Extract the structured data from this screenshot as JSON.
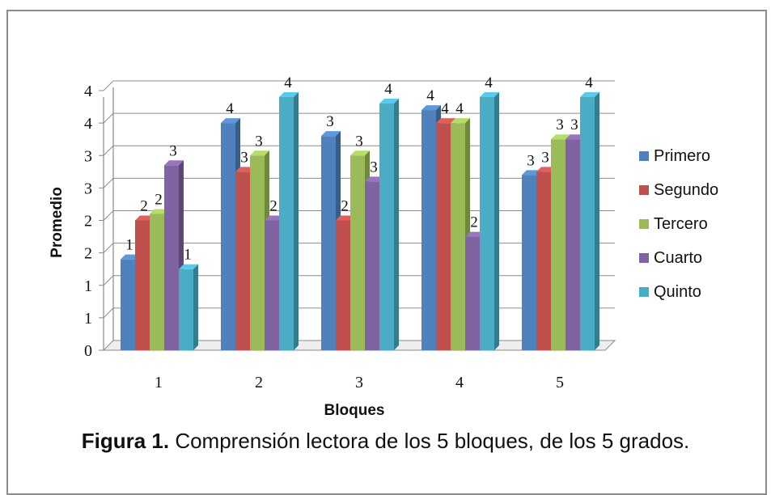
{
  "chart_data": {
    "type": "bar",
    "categories": [
      "1",
      "2",
      "3",
      "4",
      "5"
    ],
    "series": [
      {
        "name": "Primero",
        "color": "#4F81BD",
        "values": [
          1.4,
          3.5,
          3.3,
          3.7,
          2.7
        ],
        "labels": [
          "1",
          "4",
          "3",
          "4",
          "3"
        ]
      },
      {
        "name": "Segundo",
        "color": "#C0504D",
        "values": [
          2.0,
          2.75,
          2.0,
          3.5,
          2.75
        ],
        "labels": [
          "2",
          "3",
          "2",
          "4",
          "3"
        ]
      },
      {
        "name": "Tercero",
        "color": "#9BBB59",
        "values": [
          2.1,
          3.0,
          3.0,
          3.5,
          3.25
        ],
        "labels": [
          "2",
          "3",
          "3",
          "4",
          "3"
        ]
      },
      {
        "name": "Cuarto",
        "color": "#8064A2",
        "values": [
          2.85,
          2.0,
          2.6,
          1.75,
          3.25
        ],
        "labels": [
          "3",
          "2",
          "3",
          "2",
          "3"
        ]
      },
      {
        "name": "Quinto",
        "color": "#4BACC6",
        "values": [
          1.25,
          3.9,
          3.8,
          3.9,
          3.9
        ],
        "labels": [
          "1",
          "4",
          "4",
          "4",
          "4"
        ]
      }
    ],
    "yticks": [
      "0",
      "1",
      "1",
      "2",
      "2",
      "3",
      "3",
      "4",
      "4"
    ],
    "ylim": [
      0,
      4
    ],
    "xlabel": "Bloques",
    "ylabel": "Promedio",
    "grid": true,
    "legend": "right"
  },
  "caption": {
    "bold": "Figura 1.",
    "text": " Comprensión lectora de los 5 bloques, de los 5 grados."
  }
}
